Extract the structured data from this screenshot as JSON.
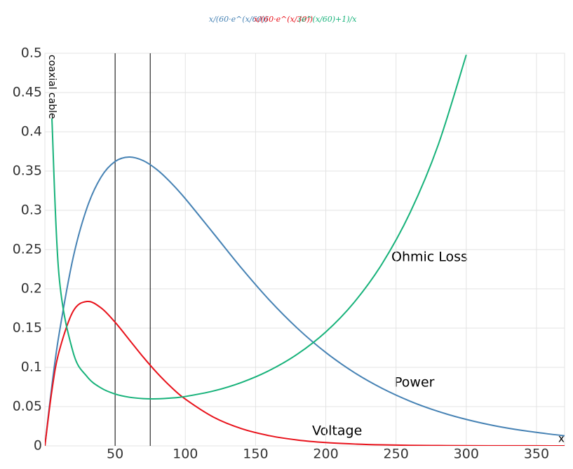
{
  "chart_data": {
    "type": "line",
    "title": "coaxial cable",
    "y_label": "coaxial cable",
    "x_label": "x",
    "annotations": [
      "Ohmic Loss",
      "Power",
      "Voltage"
    ],
    "x": [
      0,
      5,
      10,
      20,
      30,
      40,
      50,
      60,
      70,
      80,
      90,
      100,
      120,
      140,
      160,
      180,
      200,
      220,
      240,
      260,
      280,
      300,
      320,
      340,
      360,
      370
    ],
    "series": [
      {
        "name": "x/(60·e^(x/60))",
        "color": "#4682b4",
        "values": [
          0,
          0.0767,
          0.1411,
          0.2388,
          0.3033,
          0.3423,
          0.3622,
          0.3679,
          0.3633,
          0.3515,
          0.3347,
          0.3148,
          0.2707,
          0.2263,
          0.1853,
          0.1494,
          0.1189,
          0.0937,
          0.0733,
          0.0569,
          0.0439,
          0.0337,
          0.0257,
          0.0196,
          0.0149,
          0.0129
        ]
      },
      {
        "name": "x/(60·e^(x/30))",
        "color": "#e8121b",
        "values": [
          0,
          0.0705,
          0.1194,
          0.1711,
          0.1839,
          0.1757,
          0.1574,
          0.1353,
          0.1131,
          0.0927,
          0.0747,
          0.0595,
          0.0366,
          0.0219,
          0.0129,
          0.0074,
          0.0042,
          0.0024,
          0.0013,
          0.0007,
          0.0004,
          0.0002,
          0.0001,
          0.0001,
          0,
          0
        ]
      },
      {
        "name": "(e^(x/60)+1)/x",
        "color": "#17b27a",
        "values": [
          null,
          0.417,
          0.2181,
          0.1198,
          0.0883,
          0.0737,
          0.066,
          0.062,
          0.0602,
          0.0599,
          0.0609,
          0.0629,
          0.0699,
          0.0808,
          0.0962,
          0.1171,
          0.1451,
          0.1824,
          0.2317,
          0.297,
          0.3832,
          0.498,
          null,
          null,
          null,
          null
        ]
      }
    ],
    "vlines": [
      50,
      75
    ],
    "xlim": [
      0,
      370
    ],
    "ylim": [
      0,
      0.5
    ],
    "xticks": [
      50,
      100,
      150,
      200,
      250,
      300,
      350
    ],
    "yticks": [
      0,
      0.05,
      0.1,
      0.15,
      0.2,
      0.25,
      0.3,
      0.35,
      0.4,
      0.45,
      0.5
    ],
    "grid": true
  }
}
